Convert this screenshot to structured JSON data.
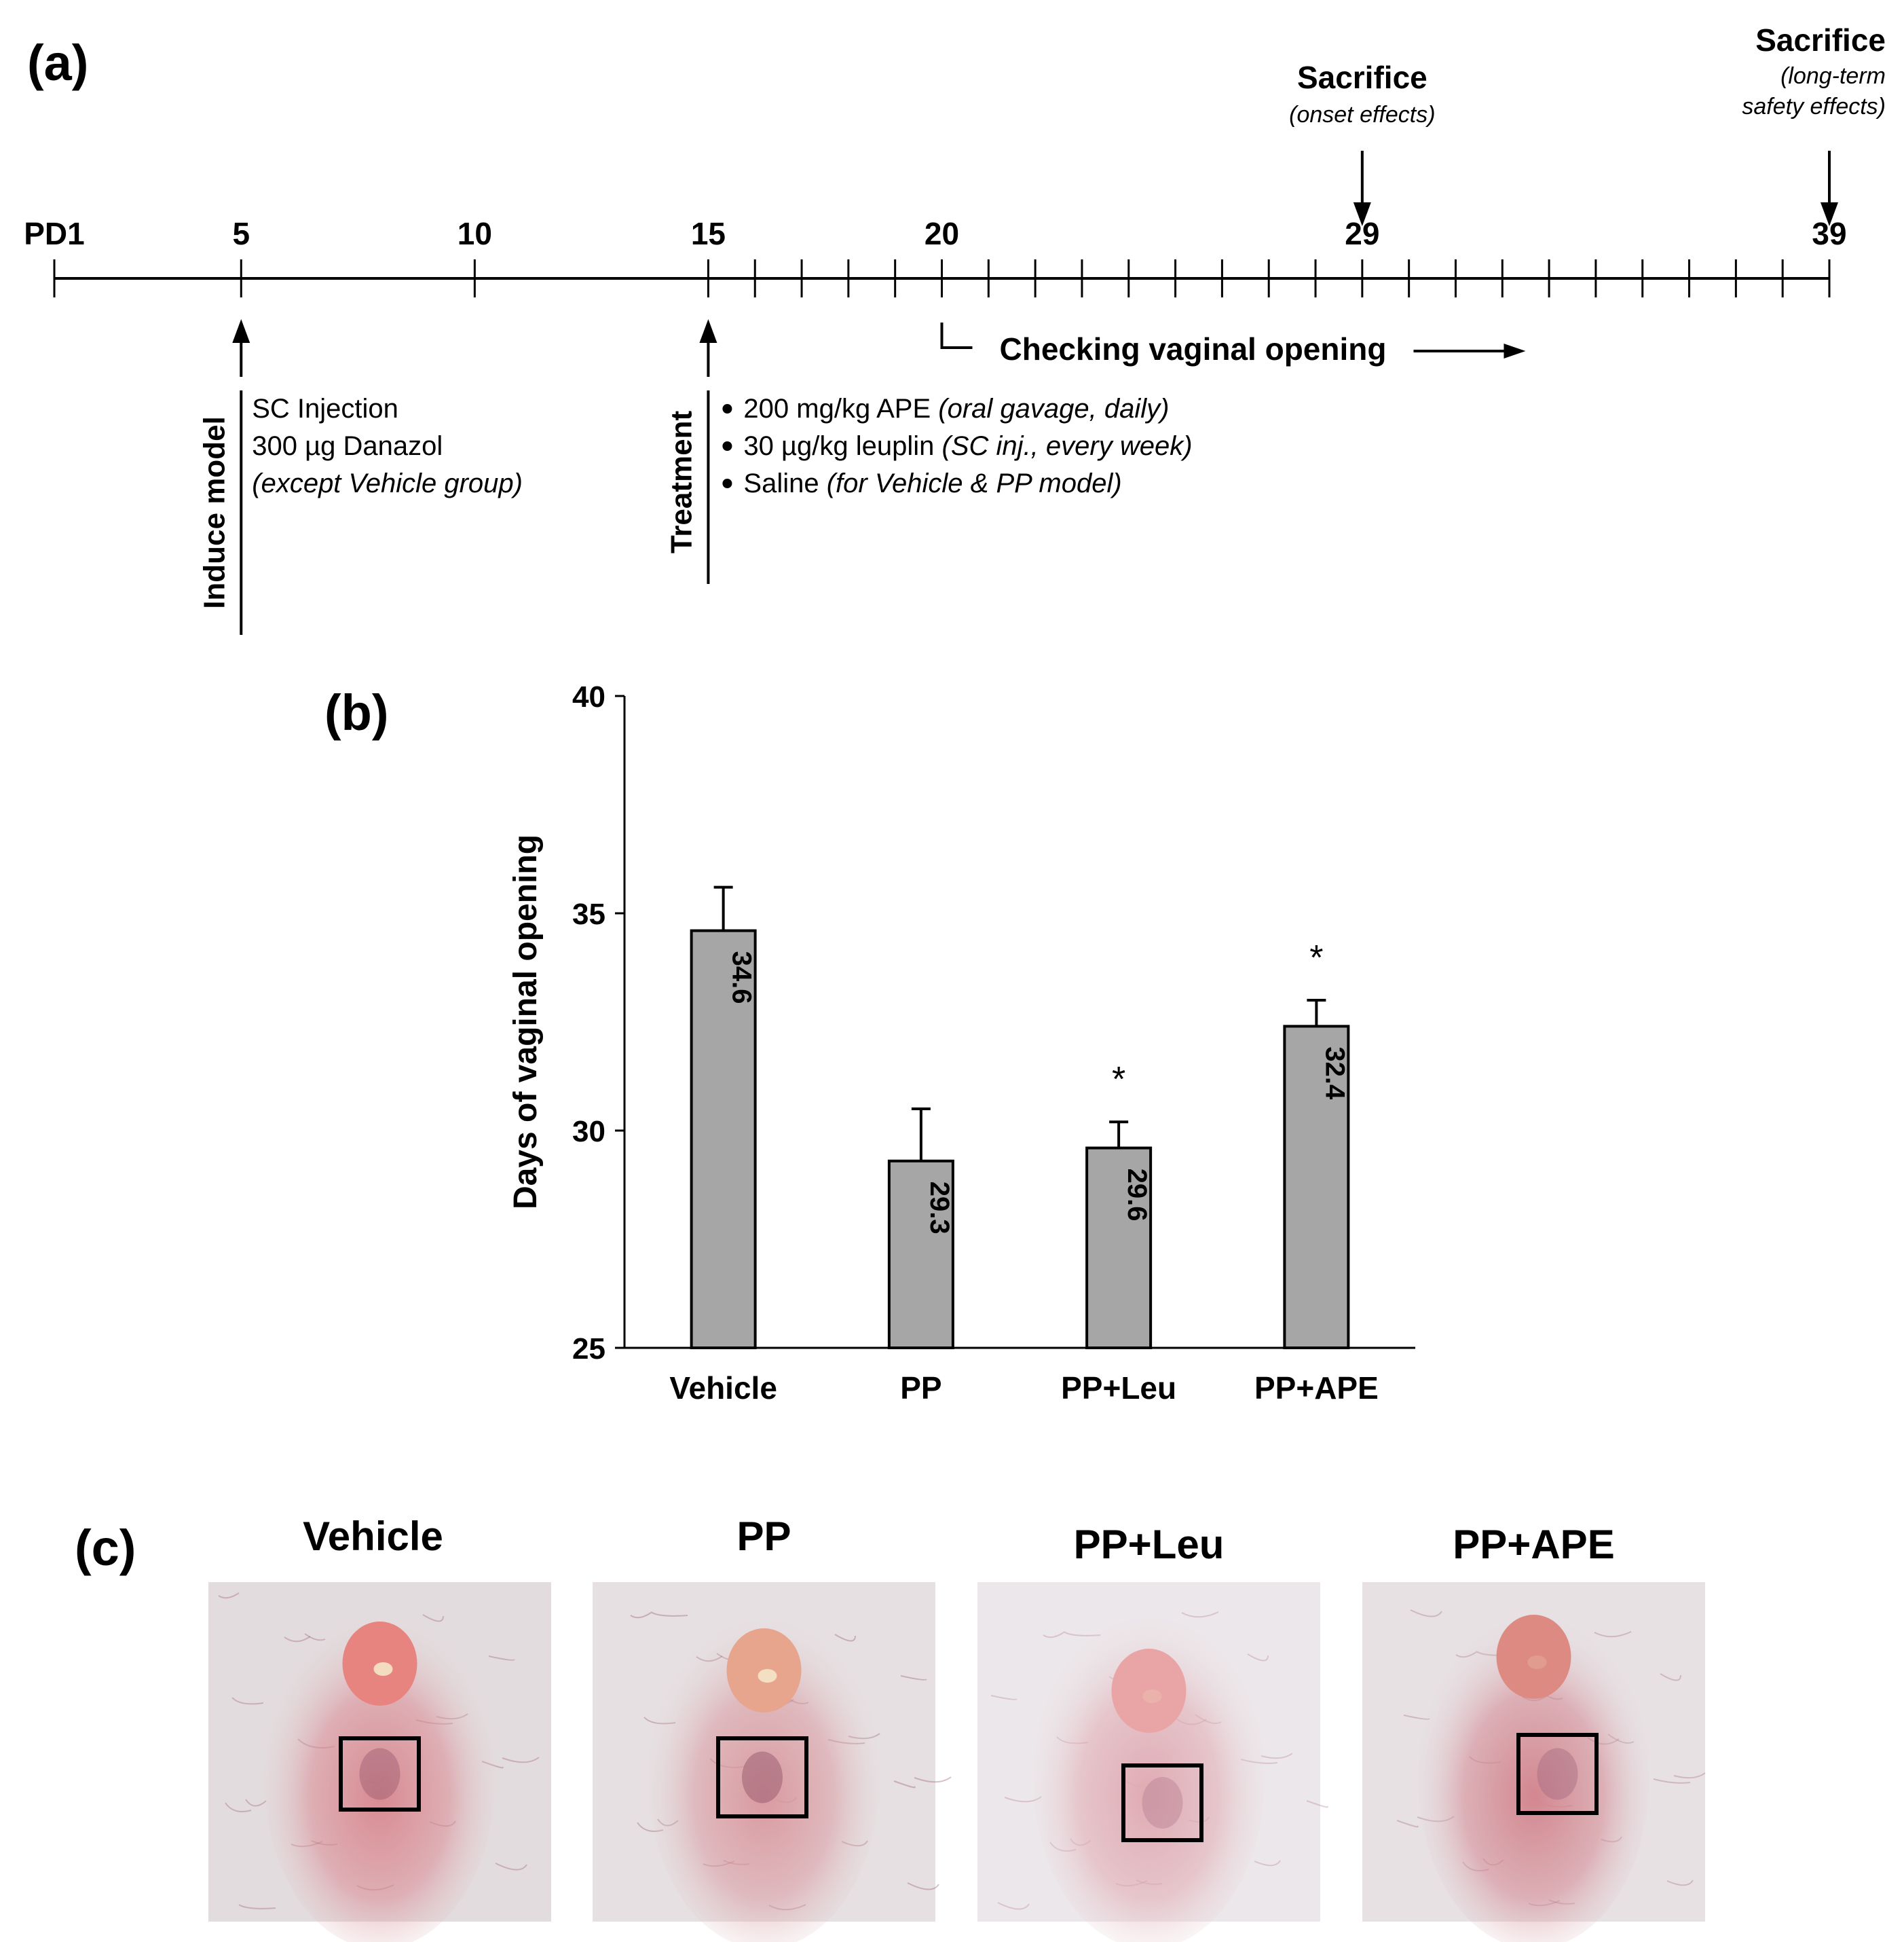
{
  "panels": {
    "a": {
      "label": "(a)",
      "timeline": {
        "start_day": 1,
        "end_day": 39,
        "tick_days": [
          1,
          5,
          10,
          15,
          16,
          17,
          18,
          19,
          20,
          21,
          22,
          23,
          24,
          25,
          26,
          27,
          28,
          29,
          30,
          31,
          32,
          33,
          34,
          35,
          36,
          37,
          38,
          39
        ],
        "labels": [
          {
            "day": 1,
            "text": "PD1"
          },
          {
            "day": 5,
            "text": "5"
          },
          {
            "day": 10,
            "text": "10"
          },
          {
            "day": 15,
            "text": "15"
          },
          {
            "day": 20,
            "text": "20"
          },
          {
            "day": 29,
            "text": "29"
          },
          {
            "day": 39,
            "text": "39"
          }
        ]
      },
      "sacrifice_onset": {
        "title": "Sacrifice",
        "note": "(onset effects)",
        "day": 29
      },
      "sacrifice_long": {
        "title": "Sacrifice",
        "note_line1": "(long-term",
        "note_line2": "safety effects)",
        "day": 39
      },
      "induce": {
        "vertical_label": "Induce model",
        "day": 5,
        "line1": "SC Injection",
        "line2": "300 µg Danazol",
        "line3": "(except Vehicle group)"
      },
      "treatment": {
        "vertical_label": "Treatment",
        "day": 15,
        "items": [
          {
            "main": "200 mg/kg APE ",
            "note": "(oral gavage, daily)"
          },
          {
            "main": "30 µg/kg leuplin ",
            "note": "(SC inj., every week)"
          },
          {
            "main": "Saline ",
            "note": "(for Vehicle & PP model)"
          }
        ]
      },
      "checking": {
        "text": "Checking vaginal opening",
        "from_day": 20
      }
    },
    "b": {
      "label": "(b)"
    },
    "c": {
      "label": "(c)",
      "photos": [
        {
          "title": "Vehicle",
          "colors": {
            "base": "#e3dcde",
            "pink": "#d98a92",
            "nub": "#e8847f",
            "dark": "#9a5a6e"
          }
        },
        {
          "title": "PP",
          "colors": {
            "base": "#e6e0e2",
            "pink": "#d99aa0",
            "nub": "#e6a58c",
            "dark": "#8e4f67"
          }
        },
        {
          "title": "PP+Leu",
          "colors": {
            "base": "#ece7ea",
            "pink": "#e0aab2",
            "nub": "#e9a5a5",
            "dark": "#b78095"
          }
        },
        {
          "title": "PP+APE",
          "colors": {
            "base": "#e7e1e4",
            "pink": "#d38790",
            "nub": "#dd8a82",
            "dark": "#a46a80"
          }
        }
      ]
    }
  },
  "chart_data": {
    "type": "bar",
    "categories": [
      "Vehicle",
      "PP",
      "PP+Leu",
      "PP+APE"
    ],
    "values": [
      34.6,
      29.3,
      29.6,
      32.4
    ],
    "value_labels": [
      "34.6",
      "29.3",
      "29.6",
      "32.4"
    ],
    "errors": [
      1.0,
      1.2,
      0.6,
      0.6
    ],
    "significance": [
      "",
      "",
      "*",
      "*"
    ],
    "title": "",
    "xlabel": "",
    "ylabel": "Days of vaginal opening",
    "ylim": [
      25,
      40
    ],
    "yticks": [
      25,
      30,
      35,
      40
    ],
    "grid": false,
    "bar_color": "#a6a6a6"
  }
}
